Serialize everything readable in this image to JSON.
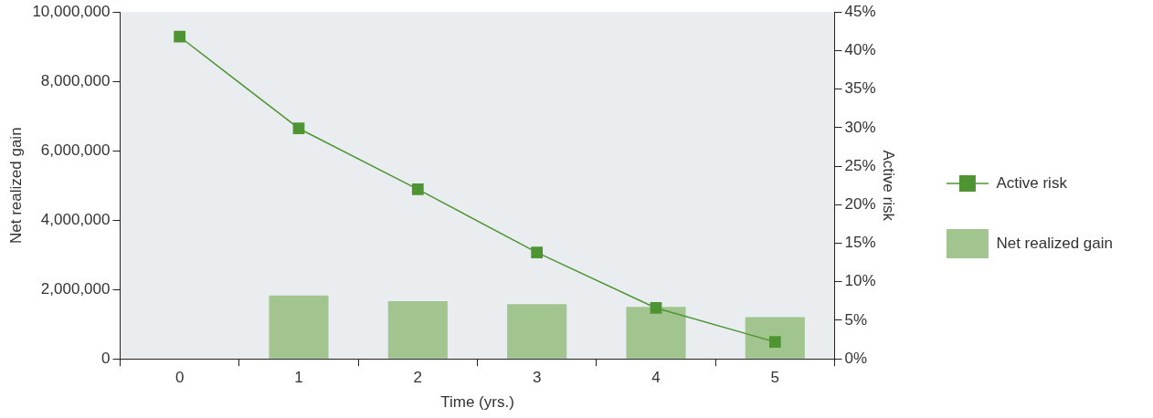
{
  "chart_data": {
    "type": "bar",
    "xlabel": "Time (yrs.)",
    "ylabel": "Net realized gain",
    "y2label": "Active risk",
    "categories": [
      "0",
      "1",
      "2",
      "3",
      "4",
      "5"
    ],
    "series": [
      {
        "name": "Active risk",
        "type": "line",
        "axis": "y2",
        "color": "#4e9433",
        "values": [
          41.8,
          29.9,
          22.0,
          13.8,
          6.6,
          2.2
        ]
      },
      {
        "name": "Net realized gain",
        "color": "#a2c590",
        "values": [
          null,
          1830000,
          1660000,
          1580000,
          1500000,
          1200000
        ]
      }
    ],
    "ylim": [
      0,
      10000000
    ],
    "yticks": [
      {
        "value": 0,
        "label": "0"
      },
      {
        "value": 2000000,
        "label": "2,000,000"
      },
      {
        "value": 4000000,
        "label": "4,000,000"
      },
      {
        "value": 6000000,
        "label": "6,000,000"
      },
      {
        "value": 8000000,
        "label": "8,000,000"
      },
      {
        "value": 10000000,
        "label": "10,000,000"
      }
    ],
    "y2lim": [
      0,
      45
    ],
    "y2ticks": [
      {
        "value": 0,
        "label": "0%"
      },
      {
        "value": 5,
        "label": "5%"
      },
      {
        "value": 10,
        "label": "10%"
      },
      {
        "value": 15,
        "label": "15%"
      },
      {
        "value": 20,
        "label": "20%"
      },
      {
        "value": 25,
        "label": "25%"
      },
      {
        "value": 30,
        "label": "30%"
      },
      {
        "value": 35,
        "label": "35%"
      },
      {
        "value": 40,
        "label": "40%"
      },
      {
        "value": 45,
        "label": "45%"
      }
    ],
    "grid": false,
    "legend": "right",
    "marker": "square",
    "line_style": "solid"
  }
}
